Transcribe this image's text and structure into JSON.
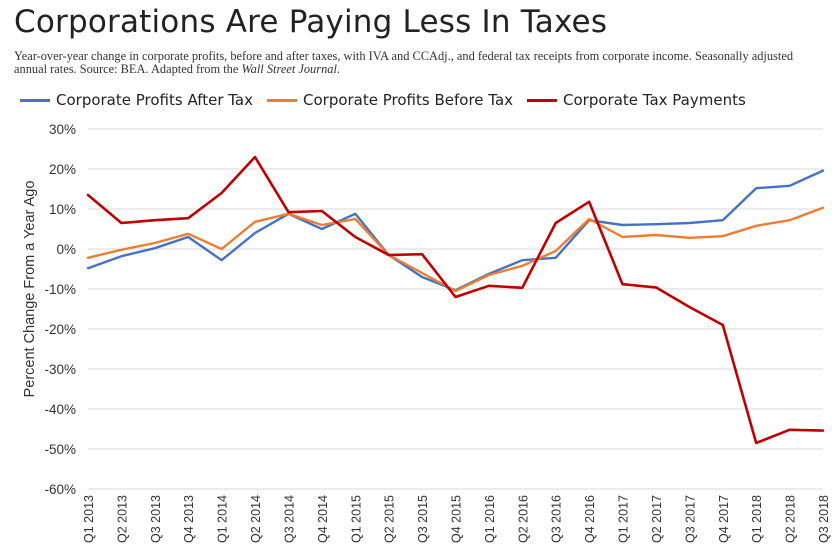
{
  "title": "Corporations Are Paying Less In Taxes",
  "subtitle": {
    "text": "Year-over-year change in corporate profits, before and after taxes, with IVA and CCAdj., and federal tax receipts from corporate income. Seasonally adjusted annual rates. Source: BEA. Adapted from the ",
    "source_italic": "Wall Street Journal",
    "end": "."
  },
  "colors": {
    "after_tax": "#4472c4",
    "before_tax": "#ed7d31",
    "tax_payments": "#c00000",
    "gridline": "#d9d9d9"
  },
  "chart_data": {
    "type": "line",
    "title": "Corporations Are Paying Less In Taxes",
    "xlabel": "",
    "ylabel": "Percent Change From a Year Ago",
    "ylim": [
      -60,
      30
    ],
    "yticks": [
      30,
      20,
      10,
      0,
      -10,
      -20,
      -30,
      -40,
      -50,
      -60
    ],
    "ytick_labels": [
      "30%",
      "20%",
      "10%",
      "0%",
      "-10%",
      "-20%",
      "-30%",
      "-40%",
      "-50%",
      "-60%"
    ],
    "grid": "horizontal",
    "legend_position": "top",
    "categories": [
      "Q1 2013",
      "Q2 2013",
      "Q3 2013",
      "Q4 2013",
      "Q1 2014",
      "Q2 2014",
      "Q3 2014",
      "Q4 2014",
      "Q1 2015",
      "Q2 2015",
      "Q3 2015",
      "Q4 2015",
      "Q1 2016",
      "Q2 2016",
      "Q3 2016",
      "Q4 2016",
      "Q1 2017",
      "Q2 2017",
      "Q3 2017",
      "Q4 2017",
      "Q1 2018",
      "Q2 2018",
      "Q3 2018"
    ],
    "series": [
      {
        "name": "Corporate Profits After Tax",
        "color_key": "after_tax",
        "values": [
          -4.8,
          -1.8,
          0.2,
          3.0,
          -2.8,
          4.0,
          8.8,
          5.0,
          8.8,
          -1.5,
          -7.0,
          -10.3,
          -6.2,
          -2.8,
          -2.2,
          7.2,
          6.0,
          6.2,
          6.5,
          7.2,
          15.2,
          15.8,
          19.6
        ]
      },
      {
        "name": "Corporate Profits Before Tax",
        "color_key": "before_tax",
        "values": [
          -2.2,
          -0.2,
          1.5,
          3.8,
          0.0,
          6.8,
          8.8,
          6.0,
          7.5,
          -1.5,
          -6.0,
          -10.5,
          -6.5,
          -4.2,
          -0.5,
          7.5,
          3.0,
          3.5,
          2.8,
          3.2,
          5.8,
          7.2,
          10.3
        ]
      },
      {
        "name": "Corporate Tax Payments",
        "color_key": "tax_payments",
        "values": [
          13.5,
          6.5,
          7.2,
          7.7,
          14.0,
          23.0,
          9.2,
          9.5,
          3.0,
          -1.5,
          -1.3,
          -12.0,
          -9.2,
          -9.7,
          6.5,
          11.8,
          -8.8,
          -9.6,
          -14.5,
          -19.0,
          -48.5,
          -45.2,
          -45.4
        ]
      }
    ]
  }
}
